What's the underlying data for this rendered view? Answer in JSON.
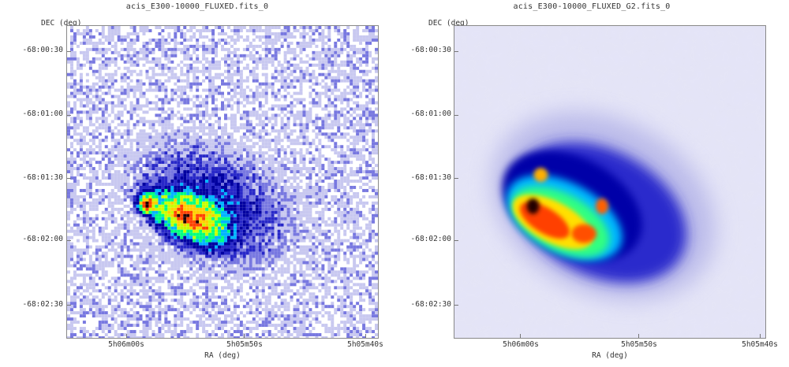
{
  "panels": [
    {
      "title": "acis_E300-10000_FLUXED.fits_0",
      "ylabel": "DEC (deg)",
      "xlabel": "RA (deg)",
      "yticks": [
        "-68:00:30",
        "-68:01:00",
        "-68:01:30",
        "-68:02:00",
        "-68:02:30"
      ],
      "xticks": [
        "5h06m00s",
        "5h05m50s",
        "5h05m40s"
      ],
      "rendering": "noisy-pixels"
    },
    {
      "title": "acis_E300-10000_FLUXED_G2.fits_0",
      "ylabel": "DEC (deg)",
      "xlabel": "RA (deg)",
      "yticks": [
        "-68:00:30",
        "-68:01:00",
        "-68:01:30",
        "-68:02:00",
        "-68:02:30"
      ],
      "xticks": [
        "5h06m00s",
        "5h05m50s",
        "5h05m40s"
      ],
      "rendering": "smoothed-gaussian"
    }
  ],
  "colormap": [
    "#ffffff",
    "#c8c8f0",
    "#7878e0",
    "#2828c8",
    "#0000a0",
    "#00b4ff",
    "#00ff80",
    "#c8ff00",
    "#ffd000",
    "#ff4000",
    "#200000"
  ]
}
